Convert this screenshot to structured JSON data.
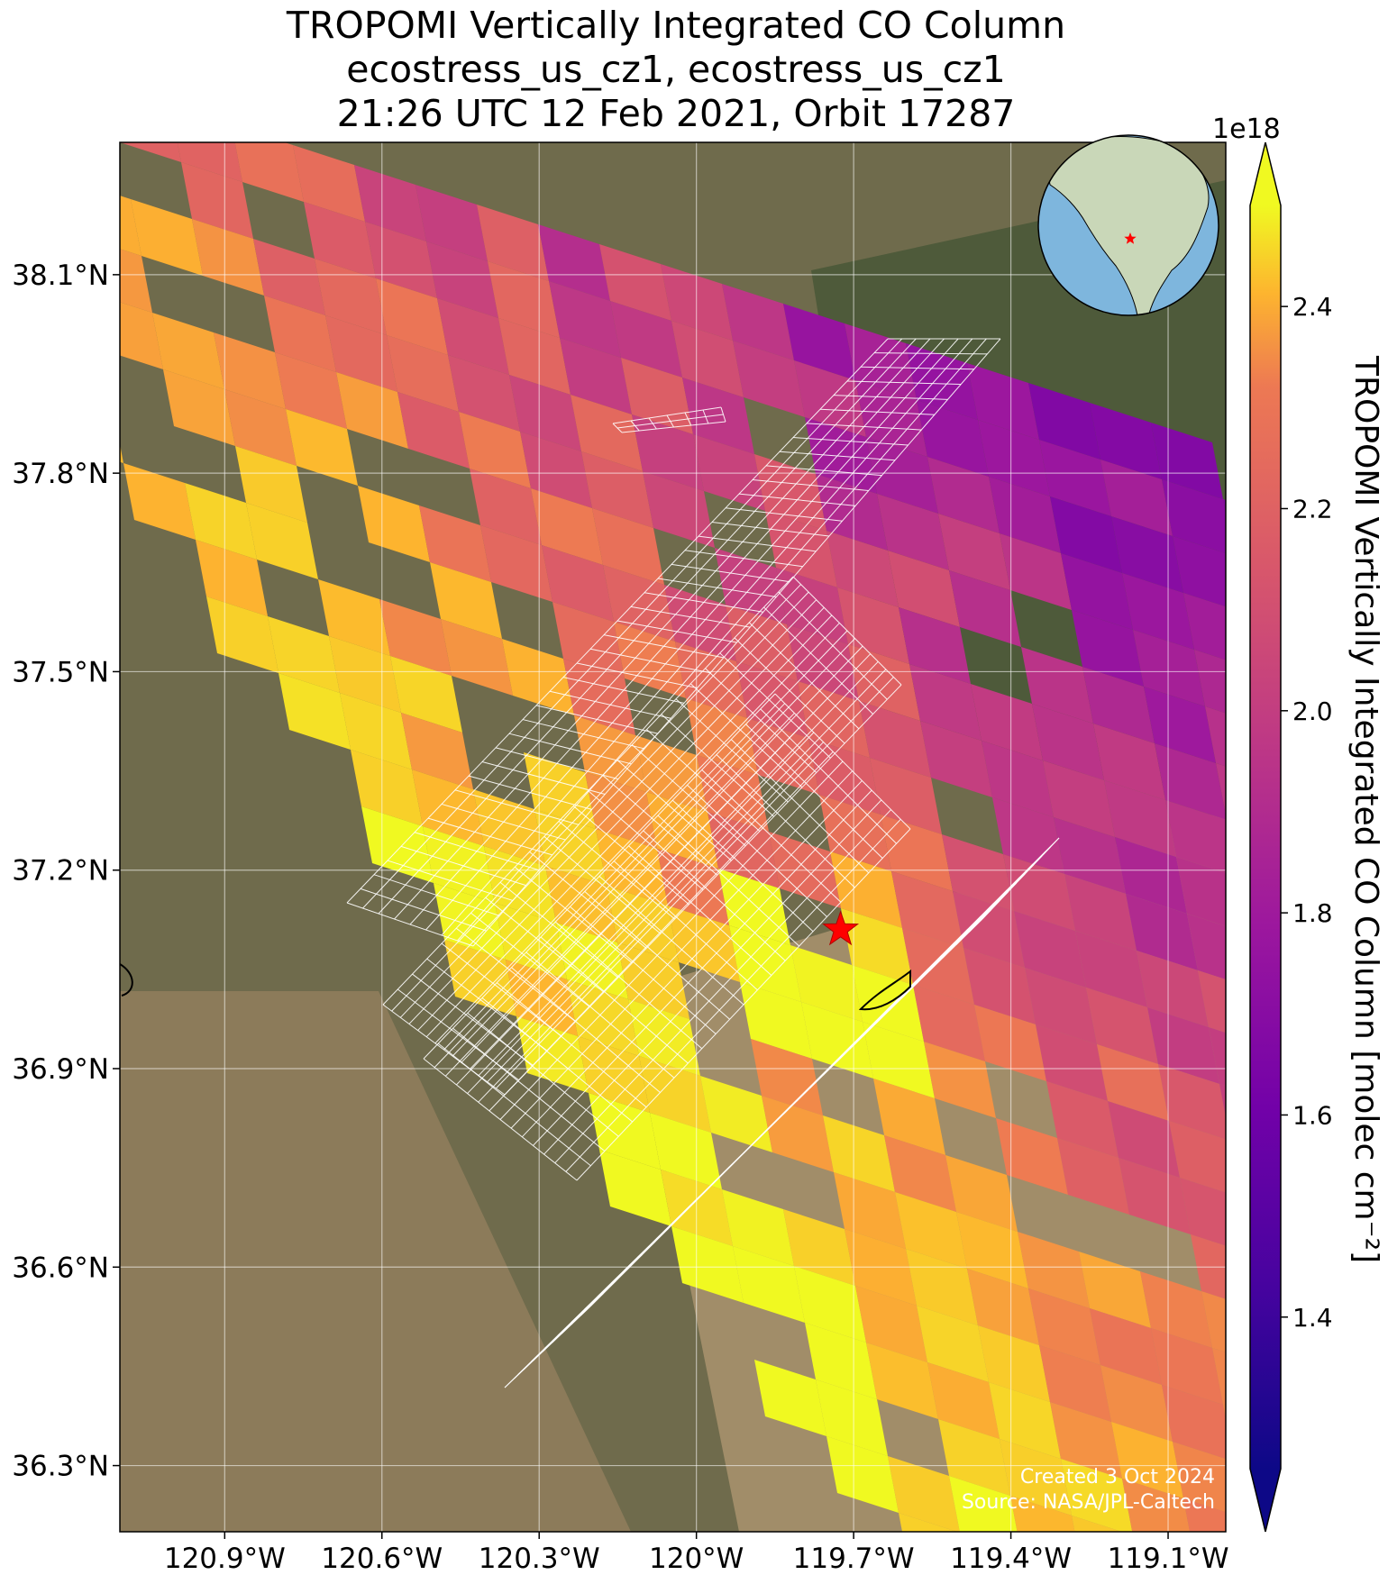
{
  "title": {
    "line1": "TROPOMI Vertically Integrated CO Column",
    "line2": "ecostress_us_cz1, ecostress_us_cz1",
    "line3": "21:26 UTC 12 Feb 2021, Orbit 17287"
  },
  "map": {
    "lon_range": [
      -121.1,
      -118.99
    ],
    "lat_range": [
      36.2,
      38.3
    ],
    "lat_ticks": [
      {
        "value": 38.1,
        "label": "38.1°N"
      },
      {
        "value": 37.8,
        "label": "37.8°N"
      },
      {
        "value": 37.5,
        "label": "37.5°N"
      },
      {
        "value": 37.2,
        "label": "37.2°N"
      },
      {
        "value": 36.9,
        "label": "36.9°N"
      },
      {
        "value": 36.6,
        "label": "36.6°N"
      },
      {
        "value": 36.3,
        "label": "36.3°N"
      }
    ],
    "lon_ticks": [
      {
        "value": -120.9,
        "label": "120.9°W"
      },
      {
        "value": -120.6,
        "label": "120.6°W"
      },
      {
        "value": -120.3,
        "label": "120.3°W"
      },
      {
        "value": -120.0,
        "label": "120°W"
      },
      {
        "value": -119.7,
        "label": "119.7°W"
      },
      {
        "value": -119.4,
        "label": "119.4°W"
      },
      {
        "value": -119.1,
        "label": "119.1°W"
      }
    ],
    "gridlines": true,
    "basemap": "satellite imagery",
    "star_marker": {
      "lon": -119.725,
      "lat": 37.11,
      "color": "#ff0000"
    },
    "inset_globe": {
      "position": "top-right",
      "ocean": "#7eb6dd",
      "land": "#c9d7b8"
    },
    "footprint_overlay_color": "#ffffff"
  },
  "colorbar": {
    "label": "TROPOMI Vertically Integrated CO Column [molec cm⁻²]",
    "exponent": "1e18",
    "range": [
      1.25,
      2.5
    ],
    "ticks": [
      {
        "value": 1.4,
        "label": "1.4"
      },
      {
        "value": 1.6,
        "label": "1.6"
      },
      {
        "value": 1.8,
        "label": "1.8"
      },
      {
        "value": 2.0,
        "label": "2.0"
      },
      {
        "value": 2.2,
        "label": "2.2"
      },
      {
        "value": 2.4,
        "label": "2.4"
      }
    ],
    "colormap": "plasma",
    "extend": "both"
  },
  "credit": {
    "line1": "Created 3 Oct 2024",
    "line2": "Source: NASA/JPL-Caltech"
  }
}
